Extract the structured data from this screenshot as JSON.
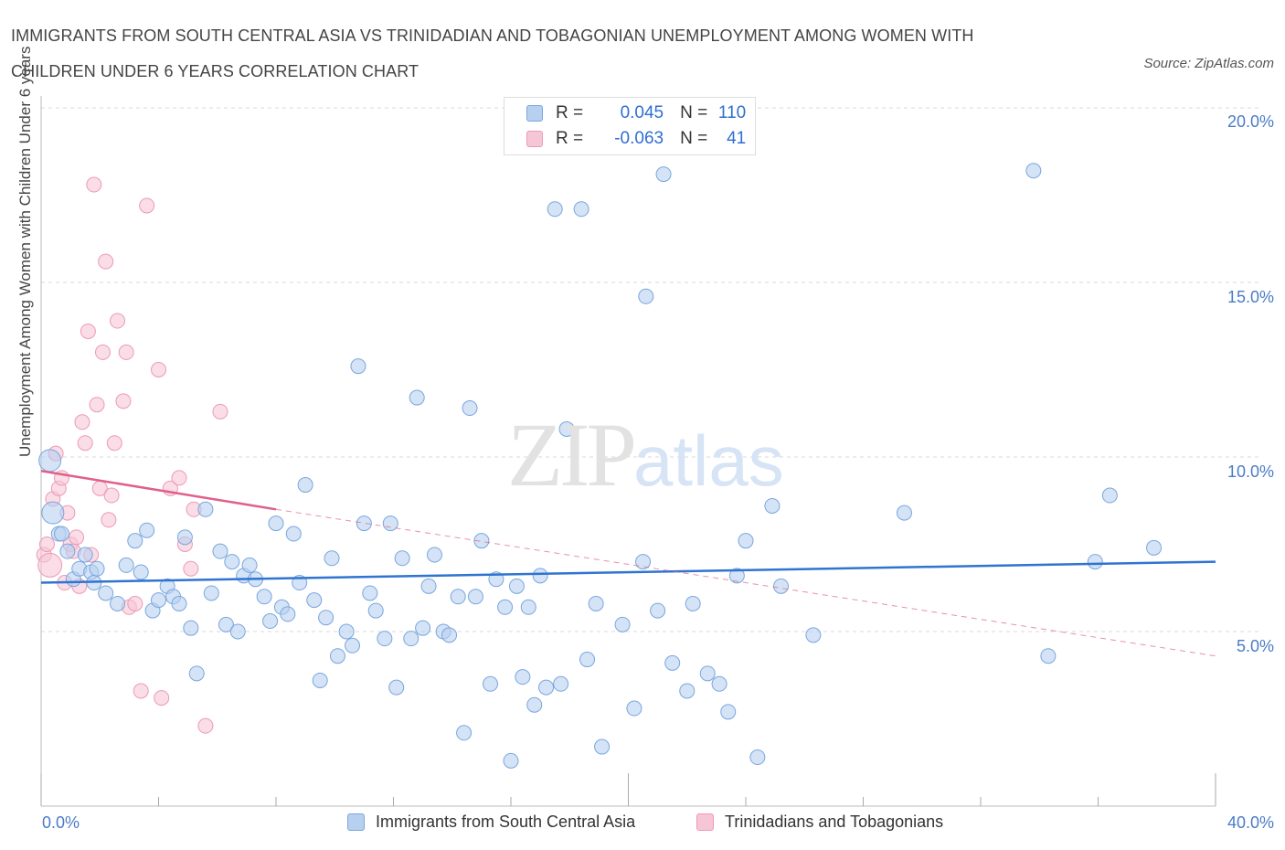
{
  "title": "IMMIGRANTS FROM SOUTH CENTRAL ASIA VS TRINIDADIAN AND TOBAGONIAN UNEMPLOYMENT AMONG WOMEN WITH CHILDREN UNDER 6 YEARS CORRELATION CHART",
  "source": "Source: ZipAtlas.com",
  "watermark": {
    "zip": "ZIP",
    "atlas": "atlas"
  },
  "legend": {
    "rows": [
      {
        "r_label": "R =",
        "r_value": "0.045",
        "n_label": "N =",
        "n_value": "110"
      },
      {
        "r_label": "R =",
        "r_value": "-0.063",
        "n_label": "N =",
        "n_value": "41"
      }
    ]
  },
  "bottom_legend": [
    "Immigrants from South Central Asia",
    "Trinidadians and Tobagonians"
  ],
  "colors": {
    "blue_fill": "#b8d0f0",
    "blue_stroke": "#7aa6de",
    "blue_line": "#2f74d0",
    "pink_fill": "#f7c6d6",
    "pink_stroke": "#ec9ab6",
    "pink_line": "#e0608a",
    "axis_text": "#4a7cc6",
    "grid": "#d8d8d8"
  },
  "chart_data": {
    "type": "scatter",
    "title": "IMMIGRANTS FROM SOUTH CENTRAL ASIA VS TRINIDADIAN AND TOBAGONIAN UNEMPLOYMENT AMONG WOMEN WITH CHILDREN UNDER 6 YEARS CORRELATION CHART",
    "xlabel": "",
    "ylabel": "Unemployment Among Women with Children Under 6 years",
    "xlim": [
      0,
      40
    ],
    "ylim": [
      0,
      20
    ],
    "x_tick_labels": [
      "0.0%",
      "40.0%"
    ],
    "y_tick_values": [
      5,
      10,
      15,
      20
    ],
    "y_tick_labels": [
      "5.0%",
      "10.0%",
      "15.0%",
      "20.0%"
    ],
    "grid": true,
    "legend_position": "top-center",
    "series": [
      {
        "name": "Immigrants from South Central Asia",
        "R": 0.045,
        "N": 110,
        "trend": {
          "x": [
            0,
            40
          ],
          "y": [
            6.4,
            7.0
          ],
          "style": "solid"
        },
        "points": [
          [
            0.3,
            9.9
          ],
          [
            0.4,
            8.4
          ],
          [
            0.6,
            7.8
          ],
          [
            0.7,
            7.8
          ],
          [
            0.9,
            7.3
          ],
          [
            1.1,
            6.5
          ],
          [
            1.3,
            6.8
          ],
          [
            1.5,
            7.2
          ],
          [
            1.7,
            6.7
          ],
          [
            1.8,
            6.4
          ],
          [
            1.9,
            6.8
          ],
          [
            2.2,
            6.1
          ],
          [
            2.6,
            5.8
          ],
          [
            2.9,
            6.9
          ],
          [
            3.2,
            7.6
          ],
          [
            3.4,
            6.7
          ],
          [
            3.6,
            7.9
          ],
          [
            3.8,
            5.6
          ],
          [
            4.0,
            5.9
          ],
          [
            4.3,
            6.3
          ],
          [
            4.5,
            6.0
          ],
          [
            4.7,
            5.8
          ],
          [
            4.9,
            7.7
          ],
          [
            5.1,
            5.1
          ],
          [
            5.3,
            3.8
          ],
          [
            5.6,
            8.5
          ],
          [
            5.8,
            6.1
          ],
          [
            6.1,
            7.3
          ],
          [
            6.3,
            5.2
          ],
          [
            6.5,
            7.0
          ],
          [
            6.7,
            5.0
          ],
          [
            6.9,
            6.6
          ],
          [
            7.1,
            6.9
          ],
          [
            7.3,
            6.5
          ],
          [
            7.6,
            6.0
          ],
          [
            7.8,
            5.3
          ],
          [
            8.0,
            8.1
          ],
          [
            8.2,
            5.7
          ],
          [
            8.4,
            5.5
          ],
          [
            8.6,
            7.8
          ],
          [
            8.8,
            6.4
          ],
          [
            9.0,
            9.2
          ],
          [
            9.3,
            5.9
          ],
          [
            9.5,
            3.6
          ],
          [
            9.7,
            5.4
          ],
          [
            9.9,
            7.1
          ],
          [
            10.1,
            4.3
          ],
          [
            10.4,
            5.0
          ],
          [
            10.6,
            4.6
          ],
          [
            10.8,
            12.6
          ],
          [
            11.0,
            8.1
          ],
          [
            11.2,
            6.1
          ],
          [
            11.4,
            5.6
          ],
          [
            11.7,
            4.8
          ],
          [
            11.9,
            8.1
          ],
          [
            12.1,
            3.4
          ],
          [
            12.3,
            7.1
          ],
          [
            12.6,
            4.8
          ],
          [
            12.8,
            11.7
          ],
          [
            13.0,
            5.1
          ],
          [
            13.2,
            6.3
          ],
          [
            13.4,
            7.2
          ],
          [
            13.7,
            5.0
          ],
          [
            13.9,
            4.9
          ],
          [
            14.2,
            6.0
          ],
          [
            14.4,
            2.1
          ],
          [
            14.6,
            11.4
          ],
          [
            14.8,
            6.0
          ],
          [
            15.0,
            7.6
          ],
          [
            15.3,
            3.5
          ],
          [
            15.5,
            6.5
          ],
          [
            15.8,
            5.7
          ],
          [
            16.0,
            1.3
          ],
          [
            16.2,
            6.3
          ],
          [
            16.4,
            3.7
          ],
          [
            16.6,
            5.7
          ],
          [
            16.8,
            2.9
          ],
          [
            17.0,
            6.6
          ],
          [
            17.2,
            3.4
          ],
          [
            17.5,
            17.1
          ],
          [
            17.7,
            3.5
          ],
          [
            17.9,
            10.8
          ],
          [
            18.4,
            17.1
          ],
          [
            18.6,
            4.2
          ],
          [
            18.9,
            5.8
          ],
          [
            19.1,
            1.7
          ],
          [
            19.8,
            5.2
          ],
          [
            20.2,
            2.8
          ],
          [
            20.5,
            7.0
          ],
          [
            20.6,
            14.6
          ],
          [
            21.0,
            5.6
          ],
          [
            21.2,
            18.1
          ],
          [
            21.5,
            4.1
          ],
          [
            22.0,
            3.3
          ],
          [
            22.2,
            5.8
          ],
          [
            22.7,
            3.8
          ],
          [
            23.1,
            3.5
          ],
          [
            23.4,
            2.7
          ],
          [
            23.7,
            6.6
          ],
          [
            24.0,
            7.6
          ],
          [
            24.4,
            1.4
          ],
          [
            24.9,
            8.6
          ],
          [
            25.2,
            6.3
          ],
          [
            26.3,
            4.9
          ],
          [
            29.4,
            8.4
          ],
          [
            33.8,
            18.2
          ],
          [
            34.3,
            4.3
          ],
          [
            35.9,
            7.0
          ],
          [
            36.4,
            8.9
          ],
          [
            37.9,
            7.4
          ]
        ]
      },
      {
        "name": "Trinidadians and Tobagonians",
        "R": -0.063,
        "N": 41,
        "trend": {
          "x": [
            0,
            8
          ],
          "y": [
            9.6,
            8.5
          ],
          "style": "solid",
          "extended": {
            "x": [
              8,
              40
            ],
            "y": [
              8.5,
              4.3
            ],
            "style": "dashed"
          }
        },
        "points": [
          [
            0.1,
            7.2
          ],
          [
            0.2,
            7.5
          ],
          [
            0.3,
            6.9
          ],
          [
            0.4,
            8.8
          ],
          [
            0.5,
            10.1
          ],
          [
            0.6,
            9.1
          ],
          [
            0.7,
            9.4
          ],
          [
            0.9,
            8.4
          ],
          [
            1.0,
            7.5
          ],
          [
            1.1,
            7.3
          ],
          [
            1.2,
            7.7
          ],
          [
            1.3,
            6.3
          ],
          [
            1.4,
            11.0
          ],
          [
            1.5,
            10.4
          ],
          [
            1.6,
            13.6
          ],
          [
            1.8,
            17.8
          ],
          [
            1.9,
            11.5
          ],
          [
            2.0,
            9.1
          ],
          [
            2.1,
            13.0
          ],
          [
            2.2,
            15.6
          ],
          [
            2.3,
            8.2
          ],
          [
            2.4,
            8.9
          ],
          [
            2.5,
            10.4
          ],
          [
            2.6,
            13.9
          ],
          [
            2.8,
            11.6
          ],
          [
            2.9,
            13.0
          ],
          [
            3.0,
            5.7
          ],
          [
            3.2,
            5.8
          ],
          [
            3.4,
            3.3
          ],
          [
            3.6,
            17.2
          ],
          [
            4.0,
            12.5
          ],
          [
            4.1,
            3.1
          ],
          [
            4.4,
            9.1
          ],
          [
            4.7,
            9.4
          ],
          [
            4.9,
            7.5
          ],
          [
            5.1,
            6.8
          ],
          [
            5.2,
            8.5
          ],
          [
            5.6,
            2.3
          ],
          [
            6.1,
            11.3
          ],
          [
            0.8,
            6.4
          ],
          [
            1.7,
            7.2
          ]
        ]
      }
    ]
  }
}
